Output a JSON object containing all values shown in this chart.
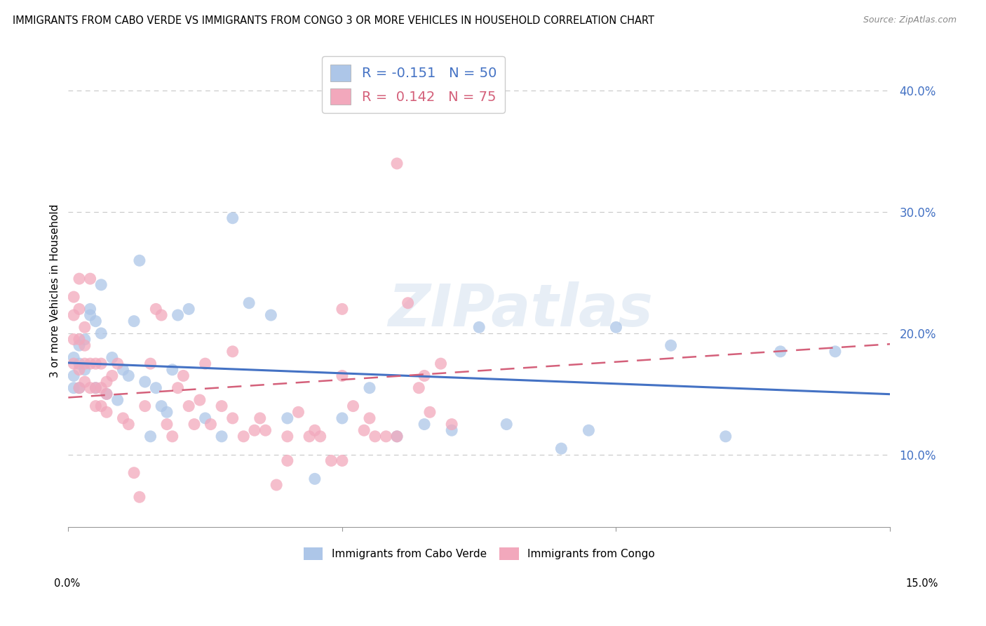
{
  "title": "IMMIGRANTS FROM CABO VERDE VS IMMIGRANTS FROM CONGO 3 OR MORE VEHICLES IN HOUSEHOLD CORRELATION CHART",
  "source": "Source: ZipAtlas.com",
  "ylabel": "3 or more Vehicles in Household",
  "y_ticks": [
    0.1,
    0.2,
    0.3,
    0.4
  ],
  "y_tick_labels": [
    "10.0%",
    "20.0%",
    "30.0%",
    "40.0%"
  ],
  "x_ticks": [
    0.0,
    0.05,
    0.1,
    0.15
  ],
  "x_tick_labels": [
    "",
    "",
    "",
    ""
  ],
  "x_min": 0.0,
  "x_max": 0.15,
  "y_min": 0.04,
  "y_max": 0.43,
  "cabo_verde_R": -0.151,
  "cabo_verde_N": 50,
  "congo_R": 0.142,
  "congo_N": 75,
  "cabo_verde_color": "#adc6e8",
  "congo_color": "#f2a8bc",
  "cabo_verde_line_color": "#4472C4",
  "congo_line_color": "#d4607a",
  "watermark": "ZIPatlas",
  "cabo_verde_x": [
    0.001,
    0.001,
    0.001,
    0.002,
    0.002,
    0.002,
    0.003,
    0.003,
    0.004,
    0.004,
    0.005,
    0.005,
    0.006,
    0.006,
    0.007,
    0.008,
    0.009,
    0.01,
    0.011,
    0.012,
    0.013,
    0.014,
    0.015,
    0.016,
    0.017,
    0.018,
    0.019,
    0.02,
    0.022,
    0.025,
    0.028,
    0.03,
    0.033,
    0.037,
    0.04,
    0.045,
    0.05,
    0.055,
    0.06,
    0.065,
    0.07,
    0.075,
    0.08,
    0.09,
    0.095,
    0.1,
    0.11,
    0.12,
    0.13,
    0.14
  ],
  "cabo_verde_y": [
    0.18,
    0.165,
    0.155,
    0.19,
    0.175,
    0.155,
    0.195,
    0.17,
    0.22,
    0.215,
    0.21,
    0.155,
    0.24,
    0.2,
    0.15,
    0.18,
    0.145,
    0.17,
    0.165,
    0.21,
    0.26,
    0.16,
    0.115,
    0.155,
    0.14,
    0.135,
    0.17,
    0.215,
    0.22,
    0.13,
    0.115,
    0.295,
    0.225,
    0.215,
    0.13,
    0.08,
    0.13,
    0.155,
    0.115,
    0.125,
    0.12,
    0.205,
    0.125,
    0.105,
    0.12,
    0.205,
    0.19,
    0.115,
    0.185,
    0.185
  ],
  "congo_x": [
    0.001,
    0.001,
    0.001,
    0.001,
    0.002,
    0.002,
    0.002,
    0.002,
    0.002,
    0.003,
    0.003,
    0.003,
    0.003,
    0.004,
    0.004,
    0.004,
    0.005,
    0.005,
    0.005,
    0.006,
    0.006,
    0.006,
    0.007,
    0.007,
    0.007,
    0.008,
    0.009,
    0.01,
    0.011,
    0.012,
    0.013,
    0.014,
    0.015,
    0.016,
    0.017,
    0.018,
    0.019,
    0.02,
    0.021,
    0.022,
    0.023,
    0.024,
    0.025,
    0.026,
    0.028,
    0.03,
    0.032,
    0.034,
    0.036,
    0.038,
    0.04,
    0.042,
    0.044,
    0.046,
    0.048,
    0.05,
    0.052,
    0.054,
    0.056,
    0.058,
    0.06,
    0.062,
    0.064,
    0.066,
    0.068,
    0.05,
    0.055,
    0.06,
    0.065,
    0.07,
    0.03,
    0.035,
    0.04,
    0.045,
    0.05
  ],
  "congo_y": [
    0.23,
    0.215,
    0.195,
    0.175,
    0.245,
    0.22,
    0.195,
    0.17,
    0.155,
    0.205,
    0.19,
    0.175,
    0.16,
    0.245,
    0.175,
    0.155,
    0.175,
    0.155,
    0.14,
    0.175,
    0.155,
    0.14,
    0.16,
    0.15,
    0.135,
    0.165,
    0.175,
    0.13,
    0.125,
    0.085,
    0.065,
    0.14,
    0.175,
    0.22,
    0.215,
    0.125,
    0.115,
    0.155,
    0.165,
    0.14,
    0.125,
    0.145,
    0.175,
    0.125,
    0.14,
    0.13,
    0.115,
    0.12,
    0.12,
    0.075,
    0.095,
    0.135,
    0.115,
    0.115,
    0.095,
    0.22,
    0.14,
    0.12,
    0.115,
    0.115,
    0.34,
    0.225,
    0.155,
    0.135,
    0.175,
    0.165,
    0.13,
    0.115,
    0.165,
    0.125,
    0.185,
    0.13,
    0.115,
    0.12,
    0.095
  ]
}
